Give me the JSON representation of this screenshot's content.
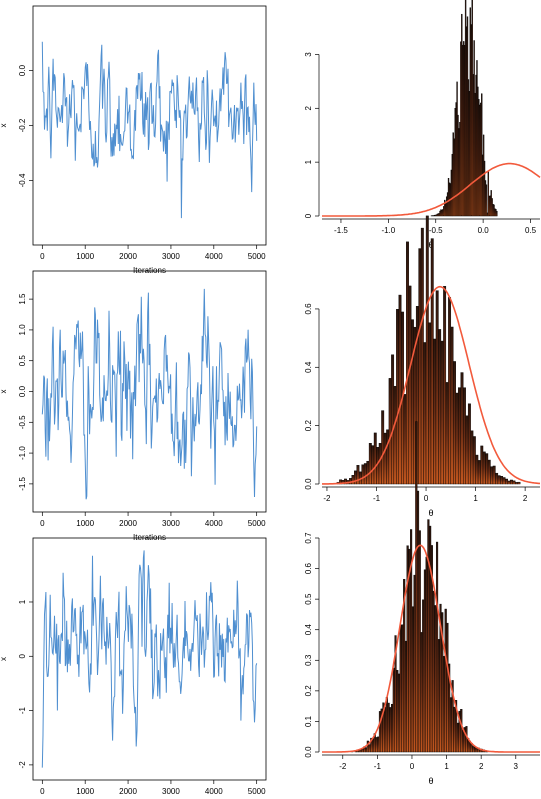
{
  "figure": {
    "trace_xlabel": "Iterations",
    "trace_ylabel": "x",
    "hist_xlabel": "θ"
  },
  "colors": {
    "trace_line": "#4f8fd0",
    "prior_curve": "#f25a3c",
    "bar_fill_top": "#2b150c",
    "bar_fill_mid": "#6a2c14",
    "bar_fill_bottom": "#c4571f",
    "bar_stroke": "#000000"
  },
  "chart_data": [
    {
      "type": "line",
      "panel": "trace-1",
      "xlabel": "Iterations",
      "ylabel": "x",
      "xlim": [
        0,
        5000
      ],
      "ylim": [
        -0.6,
        0.2
      ],
      "xticks": [
        0,
        1000,
        2000,
        3000,
        4000,
        5000
      ],
      "yticks": [
        -0.4,
        -0.2,
        0.0
      ],
      "ytick_labels": [
        "-0.4",
        "-0.2",
        "0.0"
      ],
      "series": [
        {
          "values_summary": {
            "n": 5000,
            "mean": -0.15,
            "sd": 0.11,
            "min": -0.58,
            "max": 0.19
          }
        }
      ]
    },
    {
      "type": "bar",
      "panel": "hist-1",
      "xlabel": "θ",
      "xlim": [
        -1.7,
        0.6
      ],
      "ylim": [
        0,
        3.9
      ],
      "xticks": [
        -1.5,
        -1.0,
        -0.5,
        0.0,
        0.5
      ],
      "xtick_labels": [
        "-1.5",
        "-1.0",
        "-0.5",
        "0.0",
        "0.5"
      ],
      "yticks": [
        0,
        1,
        2,
        3
      ],
      "ytick_labels": [
        "0",
        "1",
        "2",
        "3"
      ],
      "histogram": {
        "mean": -0.15,
        "sd": 0.11,
        "range": [
          -0.55,
          0.15
        ],
        "binwidth": 0.01
      },
      "curve": {
        "mean": 0.28,
        "sd": 0.41
      }
    },
    {
      "type": "line",
      "panel": "trace-2",
      "xlabel": "Iterations",
      "ylabel": "x",
      "xlim": [
        0,
        5000
      ],
      "ylim": [
        -1.8,
        1.8
      ],
      "xticks": [
        0,
        1000,
        2000,
        3000,
        4000,
        5000
      ],
      "yticks": [
        -1.5,
        -1.0,
        -0.5,
        0.0,
        0.5,
        1.0,
        1.5
      ],
      "ytick_labels": [
        "-1.5",
        "-1.0",
        "-0.5",
        "0.0",
        "0.5",
        "1.0",
        "1.5"
      ],
      "series": [
        {
          "values_summary": {
            "n": 5000,
            "mean": 0.0,
            "sd": 0.6,
            "min": -1.75,
            "max": 1.72
          }
        }
      ]
    },
    {
      "type": "bar",
      "panel": "hist-2",
      "xlabel": "θ",
      "xlim": [
        -2.1,
        2.3
      ],
      "ylim": [
        0,
        0.73
      ],
      "xticks": [
        -2,
        -1,
        0,
        1,
        2
      ],
      "xtick_labels": [
        "-2",
        "-1",
        "0",
        "1",
        "2"
      ],
      "yticks": [
        0.0,
        0.2,
        0.4,
        0.6
      ],
      "ytick_labels": [
        "0.0",
        "0.2",
        "0.4",
        "0.6"
      ],
      "histogram": {
        "mean": 0.0,
        "sd": 0.6,
        "range": [
          -1.8,
          1.9
        ],
        "binwidth": 0.05
      },
      "curve": {
        "mean": 0.28,
        "sd": 0.59
      }
    },
    {
      "type": "line",
      "panel": "trace-3",
      "xlabel": "Iterations",
      "ylabel": "x",
      "xlim": [
        0,
        5000
      ],
      "ylim": [
        -2.1,
        2.0
      ],
      "xticks": [
        0,
        1000,
        2000,
        3000,
        4000,
        5000
      ],
      "yticks": [
        -2,
        -1,
        0,
        1
      ],
      "ytick_labels": [
        "-2",
        "-1",
        "0",
        "1"
      ],
      "series": [
        {
          "values_summary": {
            "n": 5000,
            "mean": 0.25,
            "sd": 0.6,
            "min": -2.05,
            "max": 1.95
          }
        }
      ]
    },
    {
      "type": "bar",
      "panel": "hist-3",
      "xlabel": "θ",
      "xlim": [
        -2.6,
        3.7
      ],
      "ylim": [
        0,
        0.7
      ],
      "xticks": [
        -2,
        -1,
        0,
        1,
        2,
        3
      ],
      "xtick_labels": [
        "-2",
        "-1",
        "0",
        "1",
        "2",
        "3"
      ],
      "yticks": [
        0.0,
        0.1,
        0.2,
        0.3,
        0.4,
        0.5,
        0.6,
        0.7
      ],
      "ytick_labels": [
        "0.0",
        "0.1",
        "0.2",
        "0.3",
        "0.4",
        "0.5",
        "0.6",
        "0.7"
      ],
      "histogram": {
        "mean": 0.25,
        "sd": 0.6,
        "range": [
          -2.0,
          3.0
        ],
        "binwidth": 0.05
      },
      "curve": {
        "mean": 0.24,
        "sd": 0.59
      }
    }
  ]
}
